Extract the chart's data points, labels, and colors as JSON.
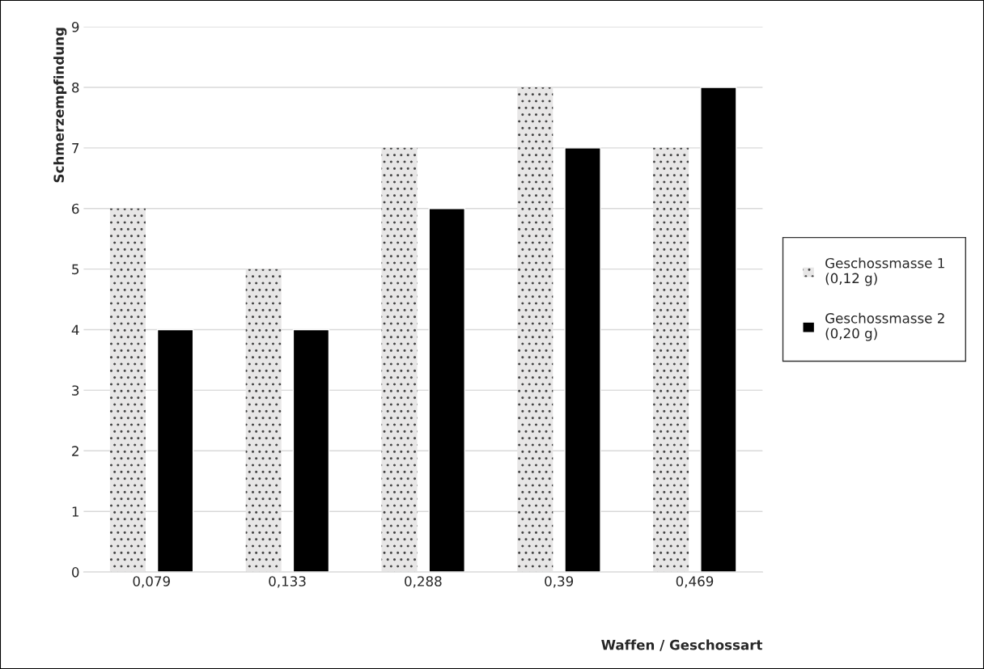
{
  "chart_data": {
    "type": "bar",
    "xlabel": "Waffen / Geschossart",
    "ylabel": "Schmerzempfindung",
    "categories": [
      "0,079",
      "0,133",
      "0,288",
      "0,39",
      "0,469"
    ],
    "series": [
      {
        "name": "Geschossmasse 1\n(0,12 g)",
        "color": "#e7e6e6",
        "values": [
          6,
          5,
          7,
          8,
          7
        ]
      },
      {
        "name": "Geschossmasse 2\n(0,20 g)",
        "color": "#000000",
        "values": [
          4,
          4,
          6,
          7,
          8
        ]
      }
    ],
    "ylim": [
      0,
      9
    ],
    "yticks": [
      0,
      1,
      2,
      3,
      4,
      5,
      6,
      7,
      8,
      9
    ],
    "grid": "y",
    "legend": "right"
  }
}
